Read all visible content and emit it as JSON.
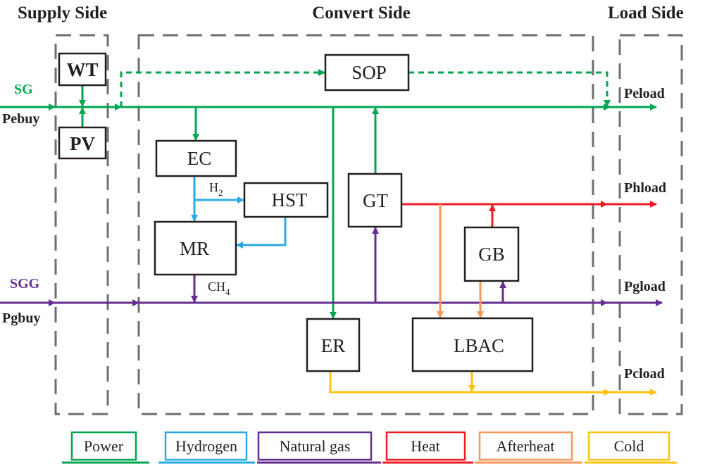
{
  "titles": {
    "supply": "Supply Side",
    "convert": "Convert Side",
    "load": "Load Side"
  },
  "blocks": {
    "wt": "WT",
    "pv": "PV",
    "sop": "SOP",
    "ec": "EC",
    "hst": "HST",
    "mr": "MR",
    "gt": "GT",
    "gb": "GB",
    "er": "ER",
    "lbac": "LBAC"
  },
  "inputs": {
    "sg": "SG",
    "pebuy": "Pebuy",
    "sgg": "SGG",
    "pgbuy": "Pgbuy"
  },
  "loads": {
    "peload": "Peload",
    "phload": "Phload",
    "pgload": "Pgload",
    "pcload": "Pcload"
  },
  "flow_labels": {
    "h2": "H",
    "h2_sub": "2",
    "ch4": "CH",
    "ch4_sub": "4"
  },
  "colors": {
    "power": "#00a651",
    "hydrogen": "#29abe2",
    "gas": "#662d91",
    "heat": "#ed1c24",
    "afterheat": "#f7975a",
    "cold": "#ffc20e"
  },
  "legend": [
    {
      "label": "Power",
      "color": "#00a651"
    },
    {
      "label": "Hydrogen",
      "color": "#29abe2"
    },
    {
      "label": "Natural gas",
      "color": "#662d91"
    },
    {
      "label": "Heat",
      "color": "#ed1c24"
    },
    {
      "label": "Afterheat",
      "color": "#f7975a"
    },
    {
      "label": "Cold",
      "color": "#ffc20e"
    }
  ]
}
